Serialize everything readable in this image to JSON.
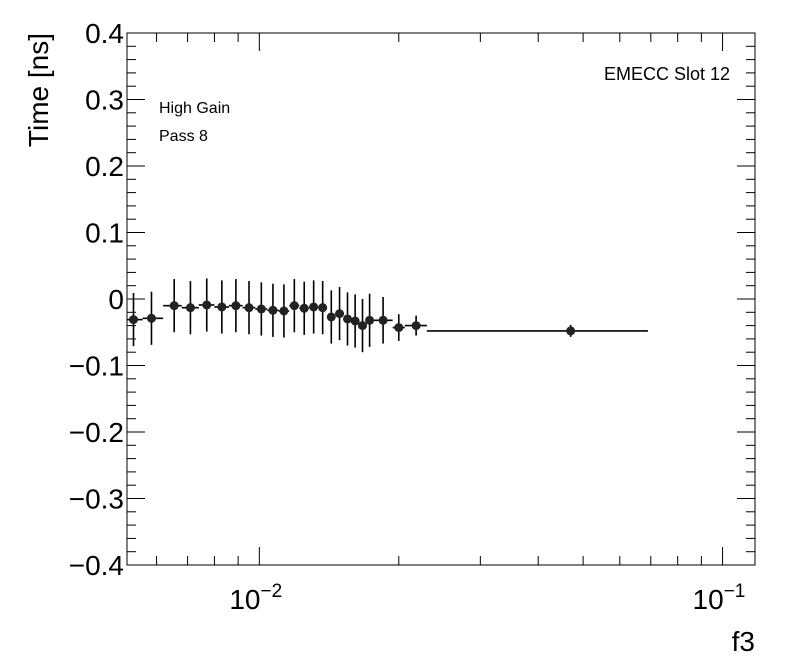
{
  "chart_data": {
    "type": "scatter",
    "xlabel": "f3",
    "ylabel": "Time [ns]",
    "x_scale": "log",
    "xlim": [
      0.00518,
      0.1175
    ],
    "ylim": [
      -0.4,
      0.4
    ],
    "y_ticks": [
      {
        "value": -0.4,
        "label": "−0.4"
      },
      {
        "value": -0.3,
        "label": "−0.3"
      },
      {
        "value": -0.2,
        "label": "−0.2"
      },
      {
        "value": -0.1,
        "label": "−0.1"
      },
      {
        "value": 0,
        "label": "0"
      },
      {
        "value": 0.1,
        "label": "0.1"
      },
      {
        "value": 0.2,
        "label": "0.2"
      },
      {
        "value": 0.3,
        "label": "0.3"
      },
      {
        "value": 0.4,
        "label": "0.4"
      }
    ],
    "x_ticks": [
      {
        "value": 0.01,
        "base": "10",
        "exp": "−2"
      },
      {
        "value": 0.1,
        "base": "10",
        "exp": "−1"
      }
    ],
    "annotations": {
      "label_1": "High Gain",
      "label_2": "Pass 8",
      "label_3": "EMECC Slot 12"
    },
    "points": [
      {
        "x": 0.00535,
        "y": -0.031,
        "xlo": 0.00518,
        "xhi": 0.0056,
        "yerr": 0.04
      },
      {
        "x": 0.00585,
        "y": -0.029,
        "xlo": 0.0056,
        "xhi": 0.0062,
        "yerr": 0.04
      },
      {
        "x": 0.00655,
        "y": -0.01,
        "xlo": 0.0062,
        "xhi": 0.0068,
        "yerr": 0.04
      },
      {
        "x": 0.0071,
        "y": -0.013,
        "xlo": 0.0068,
        "xhi": 0.0074,
        "yerr": 0.04
      },
      {
        "x": 0.0077,
        "y": -0.009,
        "xlo": 0.0074,
        "xhi": 0.008,
        "yerr": 0.04
      },
      {
        "x": 0.0083,
        "y": -0.012,
        "xlo": 0.008,
        "xhi": 0.0086,
        "yerr": 0.04
      },
      {
        "x": 0.0089,
        "y": -0.01,
        "xlo": 0.0086,
        "xhi": 0.0092,
        "yerr": 0.04
      },
      {
        "x": 0.0095,
        "y": -0.013,
        "xlo": 0.0092,
        "xhi": 0.0098,
        "yerr": 0.04
      },
      {
        "x": 0.0101,
        "y": -0.015,
        "xlo": 0.0098,
        "xhi": 0.0104,
        "yerr": 0.04
      },
      {
        "x": 0.0107,
        "y": -0.017,
        "xlo": 0.0104,
        "xhi": 0.011,
        "yerr": 0.04
      },
      {
        "x": 0.0113,
        "y": -0.018,
        "xlo": 0.011,
        "xhi": 0.0116,
        "yerr": 0.04
      },
      {
        "x": 0.0119,
        "y": -0.01,
        "xlo": 0.0116,
        "xhi": 0.0122,
        "yerr": 0.04
      },
      {
        "x": 0.0125,
        "y": -0.014,
        "xlo": 0.0122,
        "xhi": 0.0128,
        "yerr": 0.04
      },
      {
        "x": 0.0131,
        "y": -0.012,
        "xlo": 0.0128,
        "xhi": 0.0134,
        "yerr": 0.04
      },
      {
        "x": 0.0137,
        "y": -0.013,
        "xlo": 0.0134,
        "xhi": 0.014,
        "yerr": 0.04
      },
      {
        "x": 0.0143,
        "y": -0.027,
        "xlo": 0.014,
        "xhi": 0.0146,
        "yerr": 0.04
      },
      {
        "x": 0.0149,
        "y": -0.022,
        "xlo": 0.0146,
        "xhi": 0.0152,
        "yerr": 0.04
      },
      {
        "x": 0.0155,
        "y": -0.03,
        "xlo": 0.0152,
        "xhi": 0.0158,
        "yerr": 0.04
      },
      {
        "x": 0.0161,
        "y": -0.033,
        "xlo": 0.0158,
        "xhi": 0.0164,
        "yerr": 0.04
      },
      {
        "x": 0.0167,
        "y": -0.04,
        "xlo": 0.0164,
        "xhi": 0.017,
        "yerr": 0.04
      },
      {
        "x": 0.0173,
        "y": -0.032,
        "xlo": 0.017,
        "xhi": 0.0176,
        "yerr": 0.04
      },
      {
        "x": 0.0185,
        "y": -0.032,
        "xlo": 0.0176,
        "xhi": 0.0194,
        "yerr": 0.035
      },
      {
        "x": 0.02,
        "y": -0.043,
        "xlo": 0.0194,
        "xhi": 0.0206,
        "yerr": 0.02
      },
      {
        "x": 0.0218,
        "y": -0.04,
        "xlo": 0.0206,
        "xhi": 0.023,
        "yerr": 0.015
      },
      {
        "x": 0.047,
        "y": -0.048,
        "xlo": 0.023,
        "xhi": 0.069,
        "yerr": 0.009
      }
    ]
  }
}
